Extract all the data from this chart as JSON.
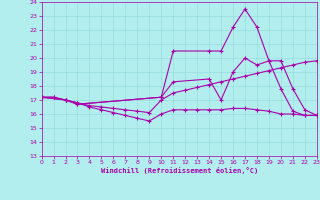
{
  "xlabel": "Windchill (Refroidissement éolien,°C)",
  "bg_color": "#b2eeee",
  "grid_color": "#99dddd",
  "line_color": "#aa00aa",
  "xlim": [
    0,
    23
  ],
  "ylim": [
    13,
    24
  ],
  "yticks": [
    13,
    14,
    15,
    16,
    17,
    18,
    19,
    20,
    21,
    22,
    23,
    24
  ],
  "xticks": [
    0,
    1,
    2,
    3,
    4,
    5,
    6,
    7,
    8,
    9,
    10,
    11,
    12,
    13,
    14,
    15,
    16,
    17,
    18,
    19,
    20,
    21,
    22,
    23
  ],
  "lines": [
    {
      "x": [
        0,
        1,
        2,
        3,
        4,
        5,
        6,
        7,
        8,
        9,
        10,
        11,
        12,
        13,
        14,
        15,
        16,
        17,
        18,
        19,
        20,
        21,
        22,
        23
      ],
      "y": [
        17.2,
        17.2,
        17.0,
        16.8,
        16.6,
        16.5,
        16.4,
        16.3,
        16.2,
        16.1,
        17.0,
        17.5,
        17.7,
        17.9,
        18.1,
        18.3,
        18.5,
        18.7,
        18.9,
        19.1,
        19.3,
        19.5,
        19.7,
        19.8
      ]
    },
    {
      "x": [
        0,
        1,
        2,
        3,
        4,
        5,
        6,
        7,
        8,
        9,
        10,
        11,
        12,
        13,
        14,
        15,
        16,
        17,
        18,
        19,
        20,
        21,
        22,
        23
      ],
      "y": [
        17.2,
        17.2,
        17.0,
        16.8,
        16.5,
        16.3,
        16.1,
        15.9,
        15.7,
        15.5,
        16.0,
        16.3,
        16.3,
        16.3,
        16.3,
        16.3,
        16.4,
        16.4,
        16.3,
        16.2,
        16.0,
        16.0,
        15.9,
        15.9
      ]
    },
    {
      "x": [
        0,
        2,
        3,
        10,
        11,
        14,
        15,
        16,
        17,
        18,
        19,
        20,
        21,
        22,
        23
      ],
      "y": [
        17.2,
        17.0,
        16.7,
        17.2,
        20.5,
        20.5,
        20.5,
        22.2,
        23.5,
        22.2,
        19.8,
        17.8,
        16.2,
        15.9,
        15.9
      ]
    },
    {
      "x": [
        0,
        2,
        3,
        10,
        11,
        14,
        15,
        16,
        17,
        18,
        19,
        20,
        21,
        22,
        23
      ],
      "y": [
        17.2,
        17.0,
        16.7,
        17.2,
        18.3,
        18.5,
        17.0,
        19.0,
        20.0,
        19.5,
        19.8,
        19.8,
        17.8,
        16.3,
        15.9
      ]
    }
  ]
}
